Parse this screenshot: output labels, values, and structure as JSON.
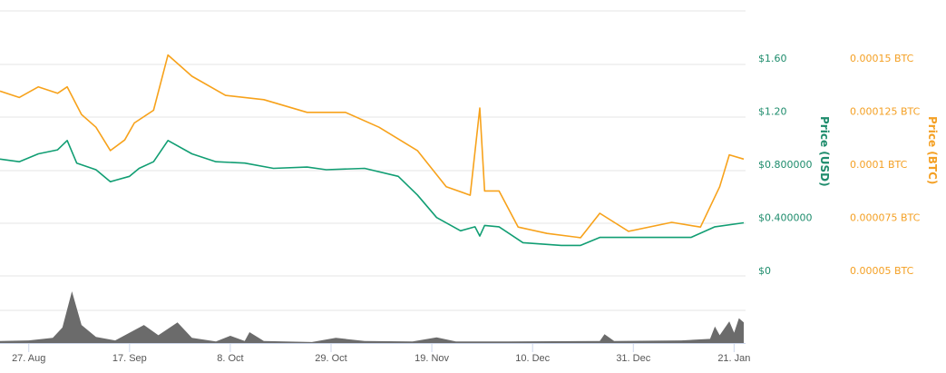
{
  "chart_data": {
    "type": "line",
    "colors": {
      "usd": "#119e73",
      "btc": "#f7a21b",
      "volume": "#6b6b6b",
      "grid": "#e6e6e6"
    },
    "y_axis_left": {
      "label": "Price (USD)",
      "ticks": [
        "$0",
        "$0.400000",
        "$0.800000",
        "$1.20",
        "$1.60"
      ],
      "tick_values": [
        0,
        0.4,
        0.8,
        1.2,
        1.6
      ],
      "range": [
        0,
        2.0
      ]
    },
    "y_axis_right": {
      "label": "Price (BTC)",
      "ticks": [
        "0.00005 BTC",
        "0.000075 BTC",
        "0.0001 BTC",
        "0.000125 BTC",
        "0.00015 BTC"
      ],
      "tick_values": [
        5e-05,
        7.5e-05,
        0.0001,
        0.000125,
        0.00015
      ],
      "range": [
        5e-05,
        0.00017
      ]
    },
    "x_axis": {
      "ticks": [
        "27. Aug",
        "17. Sep",
        "8. Oct",
        "29. Oct",
        "19. Nov",
        "10. Dec",
        "31. Dec",
        "21. Jan"
      ],
      "range": [
        "21 Aug",
        "23 Jan"
      ]
    },
    "grid": true,
    "series": [
      {
        "key": "usd",
        "points": [
          [
            "21 Aug",
            0.88
          ],
          [
            "25 Aug",
            0.86
          ],
          [
            "29 Aug",
            0.92
          ],
          [
            "2 Sep",
            0.95
          ],
          [
            "4 Sep",
            1.02
          ],
          [
            "6 Sep",
            0.85
          ],
          [
            "10 Sep",
            0.8
          ],
          [
            "13 Sep",
            0.71
          ],
          [
            "17 Sep",
            0.75
          ],
          [
            "19 Sep",
            0.81
          ],
          [
            "22 Sep",
            0.86
          ],
          [
            "25 Sep",
            1.02
          ],
          [
            "30 Sep",
            0.92
          ],
          [
            "5 Oct",
            0.86
          ],
          [
            "11 Oct",
            0.85
          ],
          [
            "17 Oct",
            0.81
          ],
          [
            "24 Oct",
            0.82
          ],
          [
            "28 Oct",
            0.8
          ],
          [
            "5 Nov",
            0.81
          ],
          [
            "12 Nov",
            0.75
          ],
          [
            "16 Nov",
            0.61
          ],
          [
            "20 Nov",
            0.44
          ],
          [
            "25 Nov",
            0.34
          ],
          [
            "28 Nov",
            0.37
          ],
          [
            "29 Nov",
            0.3
          ],
          [
            "30 Nov",
            0.38
          ],
          [
            "3 Dec",
            0.37
          ],
          [
            "8 Dec",
            0.25
          ],
          [
            "16 Dec",
            0.23
          ],
          [
            "20 Dec",
            0.23
          ],
          [
            "24 Dec",
            0.29
          ],
          [
            "31 Dec",
            0.29
          ],
          [
            "12 Jan",
            0.29
          ],
          [
            "17 Jan",
            0.37
          ],
          [
            "23 Jan",
            0.4
          ]
        ]
      },
      {
        "key": "btc",
        "points": [
          [
            "21 Aug",
            0.000137
          ],
          [
            "25 Aug",
            0.000134
          ],
          [
            "29 Aug",
            0.000139
          ],
          [
            "2 Sep",
            0.000136
          ],
          [
            "4 Sep",
            0.000139
          ],
          [
            "7 Sep",
            0.000126
          ],
          [
            "10 Sep",
            0.00012
          ],
          [
            "13 Sep",
            0.000109
          ],
          [
            "16 Sep",
            0.000114
          ],
          [
            "18 Sep",
            0.000122
          ],
          [
            "22 Sep",
            0.000128
          ],
          [
            "25 Sep",
            0.000154
          ],
          [
            "30 Sep",
            0.000144
          ],
          [
            "7 Oct",
            0.000135
          ],
          [
            "15 Oct",
            0.000133
          ],
          [
            "24 Oct",
            0.000127
          ],
          [
            "1 Nov",
            0.000127
          ],
          [
            "8 Nov",
            0.00012
          ],
          [
            "16 Nov",
            0.000109
          ],
          [
            "22 Nov",
            9.2e-05
          ],
          [
            "27 Nov",
            8.8e-05
          ],
          [
            "29 Nov",
            0.000129
          ],
          [
            "30 Nov",
            9e-05
          ],
          [
            "3 Dec",
            9e-05
          ],
          [
            "7 Dec",
            7.3e-05
          ],
          [
            "13 Dec",
            7e-05
          ],
          [
            "20 Dec",
            6.8e-05
          ],
          [
            "24 Dec",
            7.95e-05
          ],
          [
            "30 Dec",
            7.1e-05
          ],
          [
            "8 Jan",
            7.52e-05
          ],
          [
            "14 Jan",
            7.3e-05
          ],
          [
            "18 Jan",
            9.2e-05
          ],
          [
            "20 Jan",
            0.000107
          ],
          [
            "23 Jan",
            0.000105
          ]
        ]
      },
      {
        "key": "volume",
        "points": [
          [
            "21 Aug",
            0.04
          ],
          [
            "27 Aug",
            0.05
          ],
          [
            "1 Sep",
            0.1
          ],
          [
            "3 Sep",
            0.3
          ],
          [
            "5 Sep",
            1.0
          ],
          [
            "7 Sep",
            0.35
          ],
          [
            "10 Sep",
            0.12
          ],
          [
            "14 Sep",
            0.05
          ],
          [
            "20 Sep",
            0.35
          ],
          [
            "23 Sep",
            0.15
          ],
          [
            "27 Sep",
            0.4
          ],
          [
            "30 Sep",
            0.1
          ],
          [
            "5 Oct",
            0.03
          ],
          [
            "8 Oct",
            0.14
          ],
          [
            "11 Oct",
            0.04
          ],
          [
            "12 Oct",
            0.21
          ],
          [
            "15 Oct",
            0.04
          ],
          [
            "25 Oct",
            0.02
          ],
          [
            "30 Oct",
            0.1
          ],
          [
            "5 Nov",
            0.04
          ],
          [
            "15 Nov",
            0.03
          ],
          [
            "20 Nov",
            0.11
          ],
          [
            "24 Nov",
            0.03
          ],
          [
            "5 Dec",
            0.03
          ],
          [
            "24 Dec",
            0.04
          ],
          [
            "25 Dec",
            0.17
          ],
          [
            "27 Dec",
            0.04
          ],
          [
            "10 Jan",
            0.05
          ],
          [
            "16 Jan",
            0.08
          ],
          [
            "17 Jan",
            0.32
          ],
          [
            "18 Jan",
            0.15
          ],
          [
            "20 Jan",
            0.42
          ],
          [
            "21 Jan",
            0.2
          ],
          [
            "22 Jan",
            0.48
          ],
          [
            "23 Jan",
            0.4
          ]
        ]
      }
    ]
  }
}
